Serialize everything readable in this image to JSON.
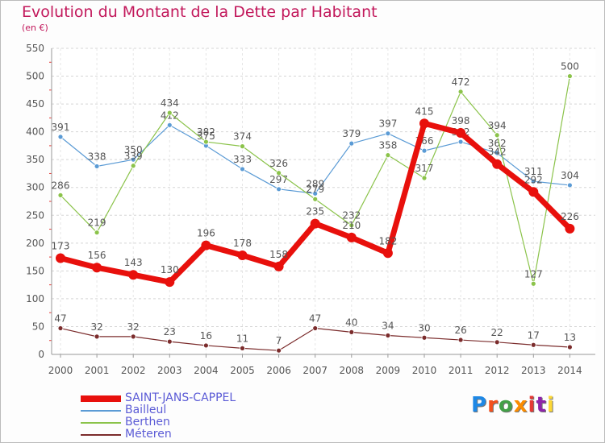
{
  "title": "Evolution du Montant de la Dette par Habitant",
  "unit": "(en €)",
  "logo": {
    "text": "Proxiti",
    "colors": [
      "#1e88e5",
      "#f4511e",
      "#43a047",
      "#fb8c00",
      "#e53935",
      "#8e24aa",
      "#fdd835"
    ]
  },
  "chart_data": {
    "type": "line",
    "x": [
      "2000",
      "2001",
      "2002",
      "2003",
      "2004",
      "2005",
      "2006",
      "2007",
      "2008",
      "2009",
      "2010",
      "2011",
      "2012",
      "2013",
      "2014"
    ],
    "ylim": [
      0,
      550
    ],
    "yticks": [
      0,
      50,
      100,
      150,
      200,
      250,
      300,
      350,
      400,
      450,
      500,
      550
    ],
    "grid": "horizontal dashed",
    "legend": "bottom-left",
    "series": [
      {
        "name": "Bailleul",
        "color": "#5b9bd5",
        "width": 1.2,
        "values": [
          391,
          338,
          350,
          412,
          375,
          333,
          297,
          289,
          379,
          397,
          366,
          382,
          362,
          311,
          304
        ]
      },
      {
        "name": "Berthen",
        "color": "#8bc34a",
        "width": 1.2,
        "values": [
          286,
          219,
          339,
          434,
          382,
          374,
          326,
          279,
          232,
          358,
          317,
          472,
          394,
          127,
          500
        ]
      },
      {
        "name": "Méteren",
        "color": "#7b2c2c",
        "width": 1.2,
        "values": [
          47,
          32,
          32,
          23,
          16,
          11,
          7,
          47,
          40,
          34,
          30,
          26,
          22,
          17,
          13
        ]
      },
      {
        "name": "SAINT-JANS-CAPPEL",
        "color": "#e8100c",
        "width": 7,
        "values": [
          173,
          156,
          143,
          130,
          196,
          178,
          158,
          235,
          210,
          182,
          415,
          398,
          342,
          292,
          226
        ]
      }
    ]
  }
}
